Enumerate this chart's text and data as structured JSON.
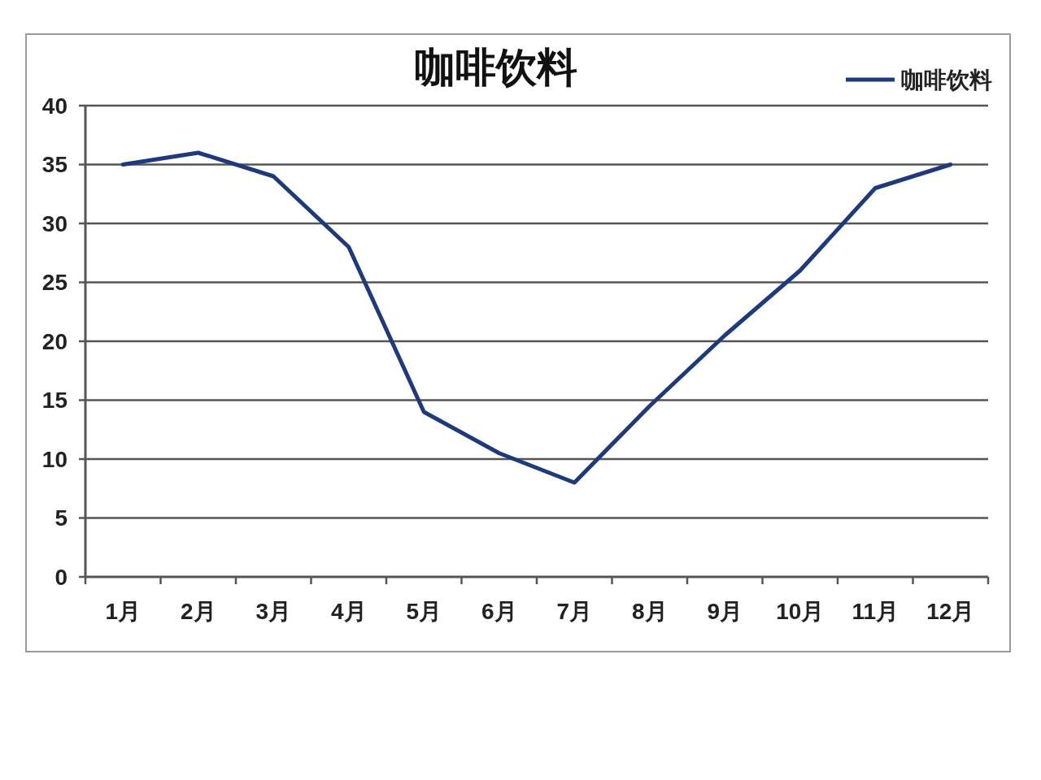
{
  "chart_data": {
    "type": "line",
    "title": "咖啡饮料",
    "categories": [
      "1月",
      "2月",
      "3月",
      "4月",
      "5月",
      "6月",
      "7月",
      "8月",
      "9月",
      "10月",
      "11月",
      "12月"
    ],
    "series": [
      {
        "name": "咖啡饮料",
        "color": "#1f3a7a",
        "values": [
          35,
          36,
          34,
          28,
          14,
          10.5,
          8,
          14.5,
          20.5,
          26,
          33,
          35
        ]
      }
    ],
    "ylim": [
      0,
      40
    ],
    "yticks": [
      0,
      5,
      10,
      15,
      20,
      25,
      30,
      35,
      40
    ],
    "grid": "y",
    "legend": "top right"
  }
}
